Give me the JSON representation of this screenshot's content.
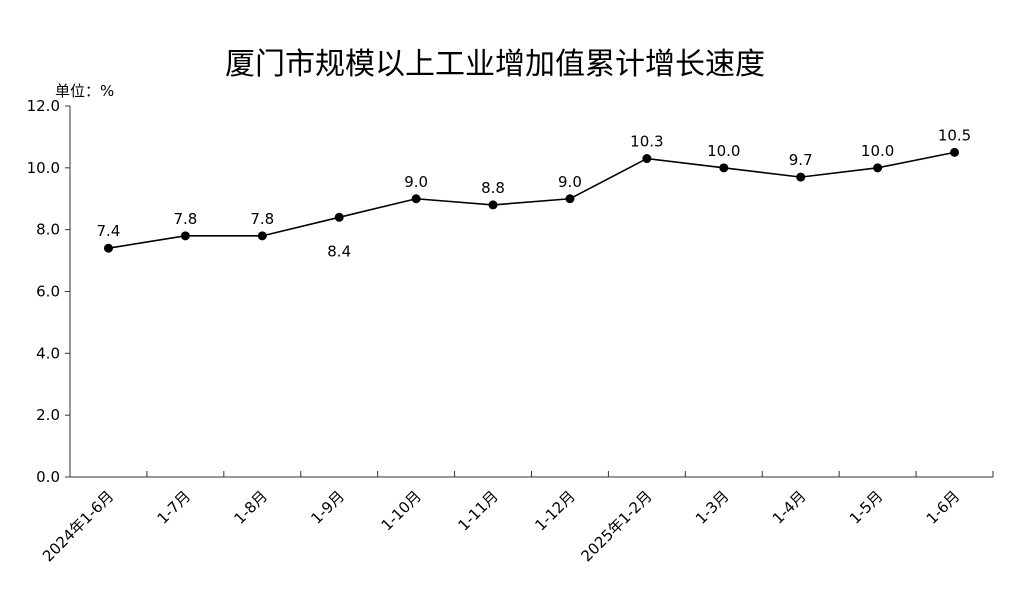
{
  "chart_data": {
    "type": "line",
    "title": "厦门市规模以上工业增加值累计增长速度",
    "unit_label": "单位：%",
    "categories": [
      "2024年1-6月",
      "1-7月",
      "1-8月",
      "1-9月",
      "1-10月",
      "1-11月",
      "1-12月",
      "2025年1-2月",
      "1-3月",
      "1-4月",
      "1-5月",
      "1-6月"
    ],
    "series": [
      {
        "values": [
          7.4,
          7.8,
          7.8,
          8.4,
          9.0,
          8.8,
          9.0,
          10.3,
          10.0,
          9.7,
          10.0,
          10.5
        ]
      }
    ],
    "data_labels": [
      "7.4",
      "7.8",
      "7.8",
      "8.4",
      "9.0",
      "8.8",
      "9.0",
      "10.3",
      "10.0",
      "9.7",
      "10.0",
      "10.5"
    ],
    "label_placement": [
      "above",
      "above",
      "above",
      "below",
      "above",
      "above",
      "above",
      "above",
      "above",
      "above",
      "above",
      "above"
    ],
    "ylim": [
      0,
      12
    ],
    "yticks": [
      "0.0",
      "2.0",
      "4.0",
      "6.0",
      "8.0",
      "10.0",
      "12.0"
    ],
    "ytick_values": [
      0,
      2,
      4,
      6,
      8,
      10,
      12
    ],
    "grid": false,
    "legend": "none",
    "colors": {
      "line": "#000000",
      "marker": "#000000",
      "axis": "#333333"
    }
  }
}
